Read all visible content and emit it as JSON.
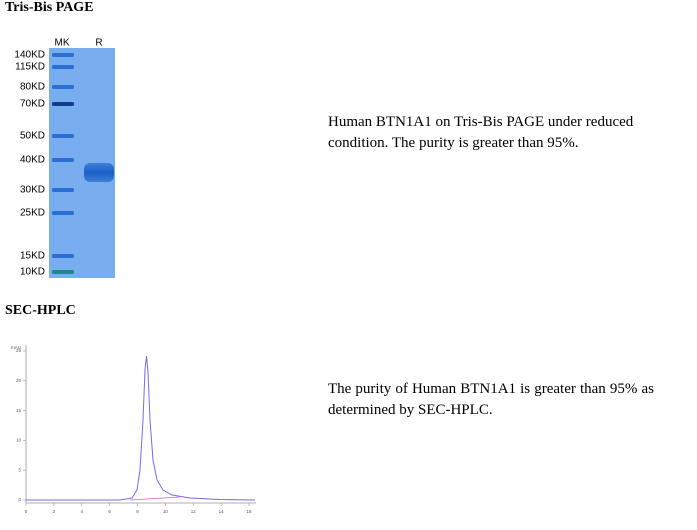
{
  "gel": {
    "title": "Tris-Bis PAGE",
    "lanes": [
      "MK",
      "R"
    ],
    "markers": [
      "140KD",
      "115KD",
      "80KD",
      "70KD",
      "50KD",
      "40KD",
      "30KD",
      "25KD",
      "15KD",
      "10KD"
    ],
    "description": "Human BTN1A1 on Tris-Bis PAGE under reduced condition. The purity is greater than 95%."
  },
  "hplc": {
    "title": "SEC-HPLC",
    "y_label": "mAU",
    "xlim": [
      0,
      16.5
    ],
    "xticks": [
      0,
      2,
      4,
      6,
      8,
      10,
      12,
      14,
      16
    ],
    "ylim": [
      0,
      26
    ],
    "yticks": [
      0,
      5,
      10,
      15,
      20,
      25
    ],
    "description": "The purity of Human BTN1A1 is greater than 95% as determined by SEC-HPLC."
  }
}
